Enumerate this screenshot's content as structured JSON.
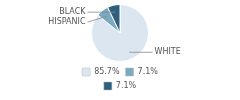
{
  "chart_data": {
    "type": "pie",
    "categories": [
      "WHITE",
      "HISPANIC",
      "BLACK"
    ],
    "values": [
      85.7,
      7.1,
      7.1
    ],
    "value_labels": [
      "85.7%",
      "7.1%",
      "7.1%"
    ],
    "colors": [
      "#dce6f0",
      "#7aaabf",
      "#2e5f7e"
    ],
    "legend": "bottom"
  }
}
